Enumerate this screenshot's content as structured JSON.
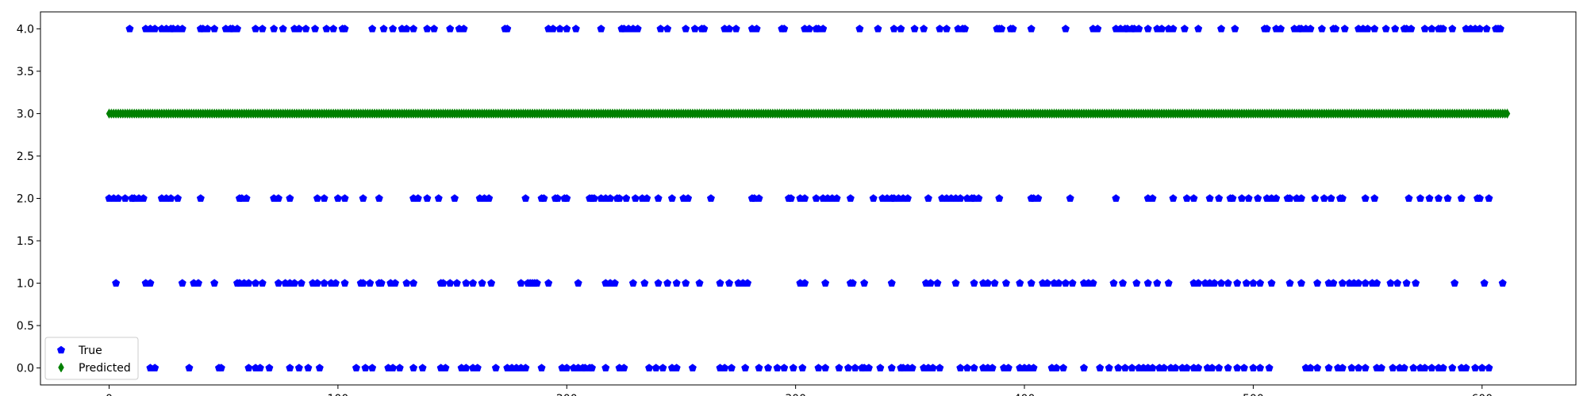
{
  "chart_data": {
    "type": "scatter",
    "xlim": [
      -30,
      641
    ],
    "ylim": [
      -0.2,
      4.2
    ],
    "x_ticks": [
      0,
      100,
      200,
      300,
      400,
      500,
      600
    ],
    "y_ticks": [
      0.0,
      0.5,
      1.0,
      1.5,
      2.0,
      2.5,
      3.0,
      3.5,
      4.0
    ],
    "grid": false,
    "legend_position": "lower-left",
    "series": [
      {
        "name": "True",
        "marker": "pentagon",
        "color": "#0000ff",
        "by_level": [
          {
            "y": 4,
            "x": [
              9,
              16,
              18,
              20,
              23,
              25,
              27,
              28,
              30,
              32,
              40,
              41,
              43,
              46,
              51,
              53,
              54,
              56,
              64,
              67,
              72,
              76,
              81,
              83,
              86,
              90,
              95,
              98,
              102,
              103,
              115,
              120,
              124,
              128,
              130,
              133,
              139,
              142,
              149,
              153,
              155,
              173,
              174,
              192,
              194,
              197,
              200,
              204,
              215,
              224,
              225,
              227,
              229,
              231,
              241,
              244,
              252,
              256,
              259,
              260,
              269,
              271,
              274,
              281,
              283,
              294,
              295,
              304,
              306,
              309,
              310,
              312,
              328,
              336,
              343,
              346,
              352,
              356,
              363,
              366,
              371,
              373,
              374,
              388,
              389,
              390,
              394,
              395,
              403,
              418,
              430,
              432,
              440,
              442,
              444,
              445,
              447,
              448,
              450,
              454,
              458,
              460,
              463,
              465,
              470,
              476,
              486,
              492,
              505,
              506,
              510,
              512,
              518,
              520,
              521,
              523,
              525,
              530,
              535,
              536,
              540,
              546,
              548,
              550,
              553,
              558,
              562,
              566,
              567,
              569,
              575,
              578,
              581,
              582,
              583,
              587,
              593,
              595,
              597,
              599,
              602,
              606,
              607,
              608
            ]
          },
          {
            "y": 2,
            "x": [
              0,
              2,
              4,
              7,
              10,
              11,
              13,
              15,
              23,
              25,
              27,
              30,
              40,
              57,
              58,
              60,
              72,
              74,
              79,
              91,
              94,
              100,
              103,
              111,
              118,
              133,
              135,
              139,
              144,
              151,
              162,
              164,
              166,
              182,
              189,
              190,
              195,
              196,
              199,
              200,
              210,
              211,
              212,
              215,
              217,
              219,
              222,
              223,
              226,
              230,
              233,
              235,
              240,
              246,
              251,
              253,
              263,
              281,
              282,
              284,
              297,
              298,
              302,
              304,
              309,
              312,
              314,
              316,
              318,
              324,
              334,
              338,
              340,
              342,
              343,
              345,
              347,
              349,
              358,
              364,
              366,
              368,
              370,
              372,
              375,
              377,
              378,
              380,
              389,
              403,
              404,
              406,
              420,
              440,
              454,
              456,
              465,
              471,
              474,
              481,
              485,
              490,
              491,
              495,
              498,
              502,
              506,
              508,
              510,
              515,
              516,
              519,
              521,
              527,
              531,
              534,
              538,
              539,
              549,
              553,
              568,
              573,
              577,
              581,
              585,
              591,
              598,
              599,
              603
            ]
          },
          {
            "y": 1,
            "x": [
              3,
              16,
              18,
              32,
              37,
              39,
              46,
              56,
              57,
              59,
              61,
              64,
              67,
              74,
              77,
              79,
              81,
              84,
              89,
              91,
              94,
              97,
              99,
              103,
              110,
              111,
              114,
              118,
              119,
              123,
              125,
              130,
              133,
              145,
              146,
              149,
              152,
              156,
              159,
              163,
              167,
              180,
              183,
              184,
              185,
              186,
              187,
              192,
              205,
              217,
              219,
              221,
              229,
              234,
              240,
              244,
              248,
              252,
              258,
              267,
              271,
              275,
              277,
              279,
              302,
              304,
              313,
              324,
              325,
              330,
              342,
              357,
              359,
              362,
              370,
              378,
              382,
              384,
              387,
              392,
              398,
              403,
              408,
              410,
              413,
              415,
              418,
              421,
              426,
              428,
              430,
              439,
              443,
              449,
              454,
              458,
              463,
              474,
              476,
              479,
              481,
              483,
              486,
              489,
              493,
              497,
              500,
              503,
              508,
              516,
              521,
              528,
              533,
              535,
              539,
              542,
              544,
              546,
              549,
              552,
              554,
              560,
              563,
              567,
              571,
              588,
              601,
              609
            ]
          },
          {
            "y": 0,
            "x": [
              18,
              20,
              35,
              48,
              49,
              61,
              64,
              66,
              70,
              79,
              83,
              87,
              92,
              108,
              112,
              115,
              122,
              124,
              127,
              133,
              137,
              145,
              147,
              154,
              156,
              159,
              161,
              169,
              174,
              176,
              178,
              180,
              182,
              189,
              198,
              200,
              203,
              205,
              207,
              208,
              210,
              211,
              217,
              223,
              225,
              236,
              239,
              242,
              246,
              248,
              255,
              267,
              269,
              272,
              278,
              284,
              288,
              292,
              295,
              299,
              303,
              310,
              313,
              319,
              323,
              326,
              329,
              330,
              332,
              337,
              342,
              346,
              347,
              349,
              351,
              356,
              358,
              360,
              363,
              372,
              375,
              378,
              382,
              384,
              386,
              391,
              393,
              398,
              400,
              402,
              404,
              412,
              414,
              417,
              426,
              433,
              437,
              441,
              444,
              447,
              450,
              452,
              454,
              456,
              459,
              461,
              464,
              466,
              469,
              471,
              474,
              476,
              480,
              482,
              485,
              489,
              493,
              496,
              500,
              503,
              507,
              523,
              525,
              528,
              533,
              537,
              539,
              543,
              546,
              549,
              554,
              556,
              561,
              564,
              566,
              570,
              573,
              575,
              578,
              581,
              583,
              587,
              591,
              593,
              597,
              600,
              603
            ]
          }
        ]
      },
      {
        "name": "Predicted",
        "marker": "thin-diamond",
        "color": "#008000",
        "constant_y": 3,
        "x_start": 0,
        "x_end": 611
      }
    ]
  }
}
